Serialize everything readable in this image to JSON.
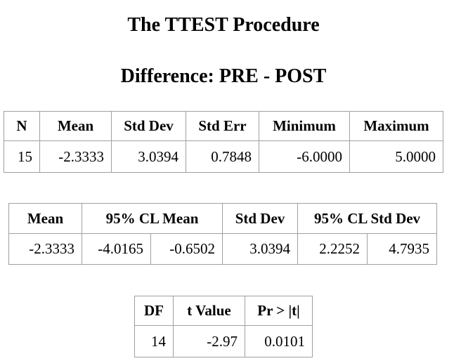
{
  "title": "The TTEST Procedure",
  "subtitle": "Difference: PRE - POST",
  "tables": [
    {
      "headers": [
        "N",
        "Mean",
        "Std Dev",
        "Std Err",
        "Minimum",
        "Maximum"
      ],
      "rows": [
        [
          "15",
          "-2.3333",
          "3.0394",
          "0.7848",
          "-6.0000",
          "5.0000"
        ]
      ]
    },
    {
      "headers": [
        "Mean",
        "95% CL Mean",
        "Std Dev",
        "95% CL Std Dev"
      ],
      "rows": [
        [
          "-2.3333",
          "-4.0165",
          "-0.6502",
          "3.0394",
          "2.2252",
          "4.7935"
        ]
      ]
    },
    {
      "headers": [
        "DF",
        "t Value",
        "Pr > |t|"
      ],
      "rows": [
        [
          "14",
          "-2.97",
          "0.0101"
        ]
      ]
    }
  ]
}
